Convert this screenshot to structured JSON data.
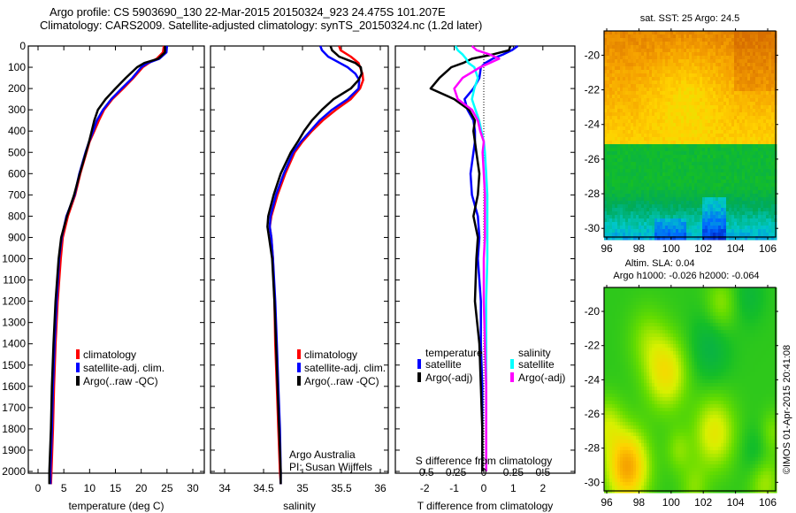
{
  "header": {
    "title_line1": "Argo profile: CS 5903690_130 22-Mar-2015 20150324_923 24.475S 101.207E",
    "title_line2": "Climatology: CARS2009. Satellite-adjusted climatology: synTS_20150324.nc (1.2d later)"
  },
  "colors": {
    "climatology": "#ff0000",
    "satellite": "#0000ff",
    "argo": "#000000",
    "salinity_satellite": "#00ffff",
    "salinity_argo": "#ff00ff"
  },
  "chart_data": [
    {
      "type": "line",
      "id": "temperature",
      "xlabel": "temperature (deg C)",
      "ylabel": "",
      "xlim": [
        -2,
        32
      ],
      "ylim": [
        2060,
        0
      ],
      "xticks": [
        0,
        5,
        10,
        15,
        20,
        25,
        30
      ],
      "xtick_labels": [
        "0",
        "5",
        "10",
        "15",
        "20",
        "25",
        "30"
      ],
      "yticks": [
        0,
        100,
        200,
        300,
        400,
        500,
        600,
        700,
        800,
        900,
        1000,
        1100,
        1200,
        1300,
        1400,
        1500,
        1600,
        1700,
        1800,
        1900,
        2000
      ],
      "ytick_labels": [
        "0",
        "100",
        "200",
        "300",
        "400",
        "500",
        "600",
        "700",
        "800",
        "900",
        "1000",
        "1100",
        "1200",
        "1300",
        "1400",
        "1500",
        "1600",
        "1700",
        "1800",
        "1900",
        "2000"
      ],
      "legend": [
        "climatology",
        "satellite-adj. clim.",
        "Argo(..raw -QC)"
      ],
      "legend_position": "center-bottom",
      "depth": [
        0,
        30,
        60,
        80,
        100,
        150,
        200,
        250,
        300,
        350,
        400,
        450,
        500,
        600,
        700,
        800,
        900,
        1000,
        1200,
        1400,
        1600,
        1800,
        2000,
        2060
      ],
      "series": [
        {
          "name": "climatology",
          "values": [
            24.4,
            24.2,
            23.0,
            21.5,
            20.3,
            18.5,
            16.5,
            14.4,
            12.8,
            11.8,
            10.9,
            10.0,
            9.4,
            8.2,
            7.2,
            5.8,
            4.8,
            4.4,
            3.8,
            3.4,
            3.1,
            2.9,
            2.6,
            2.5
          ]
        },
        {
          "name": "satellite-adj. clim.",
          "values": [
            25.0,
            24.9,
            23.5,
            21.3,
            20.0,
            18.3,
            16.2,
            14.2,
            12.6,
            11.4,
            10.7,
            9.9,
            9.2,
            8.0,
            7.1,
            5.5,
            4.6,
            4.1,
            3.6,
            3.2,
            2.9,
            2.7,
            2.4,
            2.4
          ]
        },
        {
          "name": "Argo(..raw -QC)",
          "values": [
            24.6,
            24.6,
            23.3,
            20.6,
            19.2,
            17.0,
            15.0,
            13.1,
            11.6,
            10.9,
            10.4,
            9.9,
            9.3,
            8.1,
            7.0,
            5.6,
            4.5,
            4.0,
            3.4,
            3.0,
            2.7,
            2.5,
            2.2,
            2.2
          ]
        }
      ]
    },
    {
      "type": "line",
      "id": "salinity",
      "xlabel": "salinity",
      "xlim": [
        33.8,
        36.1
      ],
      "ylim": [
        2060,
        0
      ],
      "xticks": [
        34,
        34.5,
        35,
        35.5,
        36
      ],
      "xtick_labels": [
        "34",
        "34.5",
        "35",
        "35.5",
        "36"
      ],
      "legend": [
        "climatology",
        "satellite-adj. clim.",
        "Argo(..raw -QC)"
      ],
      "legend_position": "center-bottom",
      "annotation": [
        "Argo Australia",
        "PI: Susan Wijffels"
      ],
      "depth": [
        0,
        20,
        50,
        80,
        100,
        130,
        160,
        200,
        250,
        300,
        350,
        400,
        450,
        500,
        600,
        700,
        800,
        850,
        900,
        1000,
        1200,
        1400,
        1600,
        1800,
        2000,
        2060
      ],
      "series": [
        {
          "name": "climatology",
          "values": [
            35.47,
            35.49,
            35.62,
            35.72,
            35.74,
            35.77,
            35.78,
            35.74,
            35.62,
            35.43,
            35.26,
            35.12,
            35.0,
            34.9,
            34.78,
            34.68,
            34.6,
            34.58,
            34.6,
            34.62,
            34.64,
            34.65,
            34.67,
            34.69,
            34.71,
            34.72
          ]
        },
        {
          "name": "satellite-adj. clim.",
          "values": [
            35.23,
            35.25,
            35.33,
            35.48,
            35.58,
            35.68,
            35.73,
            35.72,
            35.58,
            35.38,
            35.22,
            35.1,
            34.98,
            34.88,
            34.76,
            34.66,
            34.59,
            34.58,
            34.6,
            34.62,
            34.65,
            34.67,
            34.69,
            34.71,
            34.72,
            34.72
          ]
        },
        {
          "name": "Argo(..raw -QC)",
          "values": [
            35.36,
            35.38,
            35.47,
            35.68,
            35.75,
            35.76,
            35.72,
            35.62,
            35.4,
            35.25,
            35.12,
            35.02,
            34.94,
            34.85,
            34.72,
            34.63,
            34.56,
            34.55,
            34.57,
            34.61,
            34.64,
            34.66,
            34.68,
            34.7,
            34.72,
            34.72
          ]
        }
      ]
    },
    {
      "type": "line",
      "id": "differences",
      "xlabel": "T difference from climatology",
      "x2label": "S difference from climatology",
      "xlim": [
        -3,
        3
      ],
      "ylim": [
        2060,
        0
      ],
      "xticks": [
        -2,
        -1,
        0,
        1,
        2
      ],
      "xtick_labels": [
        "-2",
        "-1",
        "0",
        "1",
        "2"
      ],
      "x2ticks": [
        -0.5,
        -0.25,
        0,
        0.25,
        0.5
      ],
      "x2tick_labels": [
        "-0.5",
        "-0.25",
        "0",
        "0.25",
        "0.5"
      ],
      "x2lim": [
        -0.75,
        0.75
      ],
      "zero_line": "dotted",
      "legend_groups": [
        {
          "title": "temperature",
          "items": [
            "satellite",
            "Argo(-adj)"
          ]
        },
        {
          "title": "salinity",
          "items": [
            "satellite",
            "Argo(-adj)"
          ]
        }
      ],
      "legend_position": "center-bottom",
      "depth": [
        0,
        20,
        40,
        60,
        80,
        100,
        150,
        200,
        250,
        300,
        350,
        400,
        450,
        500,
        600,
        700,
        800,
        900,
        1000,
        1200,
        1400,
        1600,
        1800,
        2000
      ],
      "series": [
        {
          "name": "temperature satellite",
          "axis": "T",
          "values": [
            1.15,
            0.95,
            0.65,
            0.3,
            0.05,
            -0.1,
            -0.15,
            -0.35,
            -0.65,
            -0.55,
            -0.35,
            -0.3,
            -0.3,
            -0.35,
            -0.45,
            -0.4,
            -0.2,
            -0.15,
            -0.2,
            -0.1,
            -0.1,
            -0.05,
            -0.05,
            -0.05
          ]
        },
        {
          "name": "temperature Argo(-adj)",
          "axis": "T",
          "values": [
            0.9,
            0.85,
            0.3,
            -0.4,
            -0.7,
            -1.1,
            -1.5,
            -1.8,
            -1.0,
            -0.5,
            -0.3,
            -0.35,
            -0.3,
            -0.25,
            -0.15,
            -0.2,
            -0.35,
            -0.2,
            -0.25,
            -0.3,
            -0.15,
            -0.1,
            -0.05,
            -0.05
          ]
        },
        {
          "name": "salinity satellite",
          "axis": "S",
          "values": [
            -0.24,
            -0.22,
            -0.18,
            -0.15,
            -0.13,
            -0.08,
            -0.05,
            -0.08,
            -0.1,
            -0.07,
            -0.04,
            -0.02,
            0.0,
            0.01,
            0.02,
            0.03,
            0.03,
            0.03,
            0.03,
            0.02,
            0.02,
            0.02,
            0.02,
            0.02
          ]
        },
        {
          "name": "salinity Argo(-adj)",
          "axis": "S",
          "values": [
            -0.1,
            -0.06,
            0.05,
            0.13,
            0.05,
            -0.03,
            -0.18,
            -0.25,
            -0.22,
            -0.1,
            -0.05,
            -0.03,
            0.0,
            -0.01,
            0.0,
            0.01,
            0.01,
            0.01,
            0.0,
            0.0,
            0.01,
            0.02,
            0.02,
            0.02
          ]
        }
      ]
    },
    {
      "type": "heatmap",
      "id": "sst-map",
      "title": "sat. SST: 25 Argo: 24.5",
      "xlim": [
        95.8,
        106.8
      ],
      "ylim": [
        -30.5,
        -18.6
      ],
      "xticks": [
        96,
        98,
        100,
        102,
        104,
        106
      ],
      "xtick_labels": [
        "96",
        "98",
        "100",
        "102",
        "104",
        "106"
      ],
      "yticks": [
        -20,
        -22,
        -24,
        -26,
        -28,
        -30
      ],
      "ytick_labels": [
        "-20",
        "-22",
        "-24",
        "-26",
        "-28",
        "-30"
      ],
      "colormap": [
        "#0000a0",
        "#0080ff",
        "#00c8c8",
        "#00b060",
        "#20c020",
        "#80e000",
        "#e0f000",
        "#ffd000",
        "#f0a000",
        "#d07000"
      ],
      "summary": "warm (orange) in north, yellow band -20 to -25, green south of -25, blue/cyan patches near -28 to -30"
    },
    {
      "type": "heatmap",
      "id": "sla-map",
      "title": "Altim. SLA: 0.04",
      "subtitle": "Argo h1000: -0.026 h2000: -0.064",
      "xlim": [
        95.8,
        106.8
      ],
      "ylim": [
        -30.5,
        -18.6
      ],
      "xticks": [
        96,
        98,
        100,
        102,
        104,
        106
      ],
      "xtick_labels": [
        "96",
        "98",
        "100",
        "102",
        "104",
        "106"
      ],
      "yticks": [
        -20,
        -22,
        -24,
        -26,
        -28,
        -30
      ],
      "ytick_labels": [
        "-20",
        "-22",
        "-24",
        "-26",
        "-28",
        "-30"
      ],
      "summary": "mostly green; yellow eddies near (99.7,-23.5) and (102.8,-27); orange high near (97.2,-29); darker teal lows near (102.5,-22) and (105.5,-28.3)"
    }
  ],
  "footer": {
    "credit": "©IMOS 01-Apr-2015 20:41:08"
  }
}
